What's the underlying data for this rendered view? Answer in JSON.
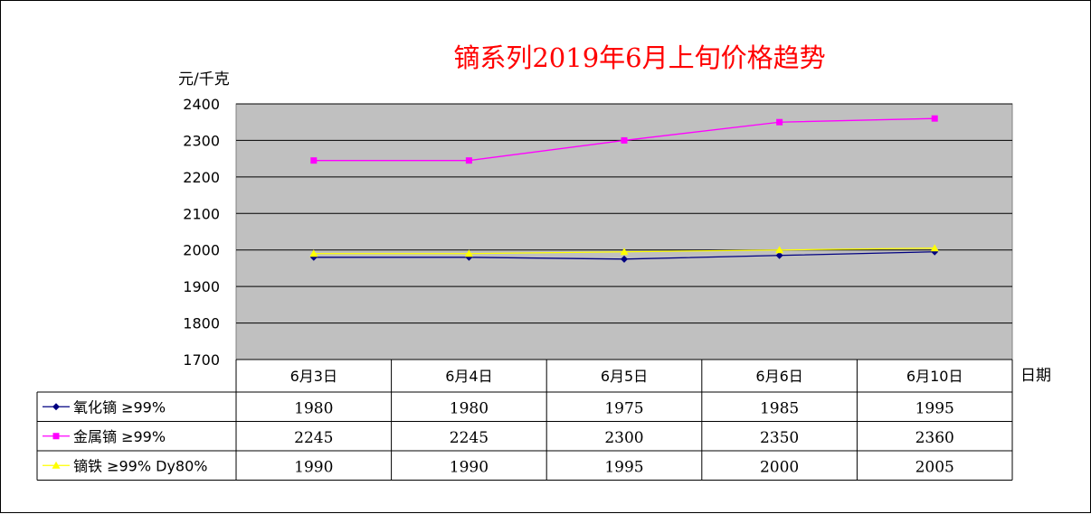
{
  "chart_data": {
    "type": "line",
    "title": "镝系列2019年6月上旬价格趋势",
    "ylabel": "元/千克",
    "xlabel": "日期",
    "ylim": [
      1700,
      2400
    ],
    "yticks": [
      1700,
      1800,
      1900,
      2000,
      2100,
      2200,
      2300,
      2400
    ],
    "grid": true,
    "categories": [
      "6月3日",
      "6月4日",
      "6月5日",
      "6月6日",
      "6月10日"
    ],
    "series": [
      {
        "name": "氧化镝 ≥99%",
        "values": [
          1980,
          1980,
          1975,
          1985,
          1995
        ],
        "color": "#000080",
        "marker": "diamond"
      },
      {
        "name": "金属镝 ≥99%",
        "values": [
          2245,
          2245,
          2300,
          2350,
          2360
        ],
        "color": "#ff00ff",
        "marker": "square"
      },
      {
        "name": "镝铁 ≥99% Dy80%",
        "values": [
          1990,
          1990,
          1995,
          2000,
          2005
        ],
        "color": "#ffff00",
        "marker": "triangle"
      }
    ],
    "plot_background": "#c0c0c0",
    "data_table": true
  }
}
